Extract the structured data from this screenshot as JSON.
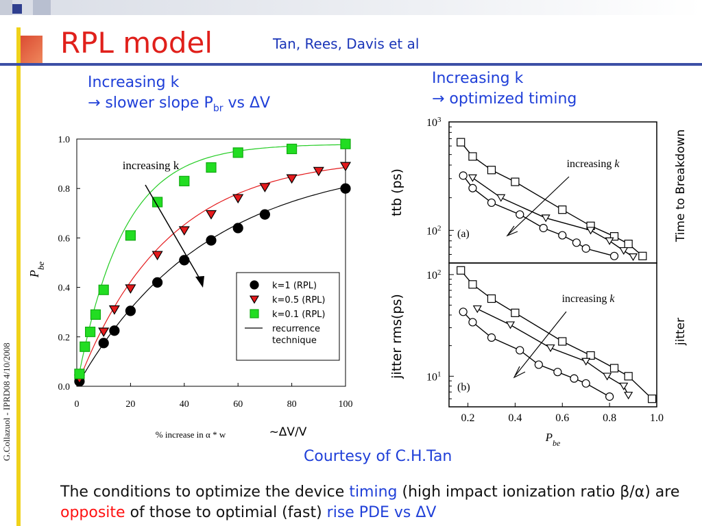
{
  "slide": {
    "title": "RPL model",
    "authors": "Tan, Rees, Davis et al",
    "left_caption_line1": "Increasing k",
    "left_caption_line2_prefix": "→ slower slope P",
    "left_caption_line2_sub": "br",
    "left_caption_line2_suffix": " vs ΔV",
    "right_caption_line1": "Increasing k",
    "right_caption_line2": "→ optimized timing",
    "courtesy": "Courtesy of C.H.Tan",
    "sidebar": "G.Collazuol - IPRD08  4/10/2008",
    "footer_parts": [
      {
        "text": "The conditions to optimize the device ",
        "color": "#111111"
      },
      {
        "text": "timing",
        "color": "#1f3fd8"
      },
      {
        "text": " (high impact ionization ratio β/α) are ",
        "color": "#111111"
      },
      {
        "text": "opposite",
        "color": "#ff1111"
      },
      {
        "text": " of those to optimial (fast) ",
        "color": "#111111"
      },
      {
        "text": "rise PDE vs ΔV",
        "color": "#1f3fd8"
      }
    ],
    "right_labels": {
      "top": "Time to Breakdown",
      "bottom": "jitter"
    },
    "deltav_note": "~ΔV/V"
  },
  "chart_data": [
    {
      "type": "scatter",
      "xlabel": "% increase in α * w",
      "ylabel": "P_be",
      "xlim": [
        0,
        100
      ],
      "ylim": [
        0,
        1.0
      ],
      "xticks": [
        0,
        20,
        40,
        60,
        80,
        100
      ],
      "yticks": [
        0.0,
        0.2,
        0.4,
        0.6,
        0.8,
        1.0
      ],
      "annotation": "increasing k",
      "legend_position": "lower-right",
      "series": [
        {
          "name": "k=1 (RPL)",
          "marker": "circle",
          "color": "#000000",
          "x": [
            1,
            10,
            14,
            20,
            30,
            40,
            50,
            60,
            70,
            100
          ],
          "y": [
            0.02,
            0.175,
            0.225,
            0.305,
            0.42,
            0.51,
            0.59,
            0.64,
            0.695,
            0.8
          ]
        },
        {
          "name": "k=0.5 (RPL)",
          "marker": "triangle-down",
          "color": "#e41a1c",
          "x": [
            1,
            10,
            14,
            20,
            30,
            40,
            50,
            60,
            70,
            80,
            90,
            100
          ],
          "y": [
            0.03,
            0.22,
            0.31,
            0.395,
            0.53,
            0.63,
            0.695,
            0.76,
            0.805,
            0.84,
            0.87,
            0.89
          ]
        },
        {
          "name": "k=0.1 (RPL)",
          "marker": "square",
          "color": "#22dd22",
          "x": [
            1,
            3,
            5,
            7,
            10,
            20,
            30,
            40,
            50,
            60,
            80,
            100
          ],
          "y": [
            0.05,
            0.16,
            0.22,
            0.29,
            0.39,
            0.61,
            0.745,
            0.83,
            0.885,
            0.945,
            0.96,
            0.98
          ]
        },
        {
          "name": "recurrence technique",
          "marker": "line",
          "color": "#000000"
        }
      ]
    },
    {
      "type": "line",
      "panel": "(a)",
      "xlabel": "P_be",
      "ylabel": "ttb (ps)",
      "yscale": "log",
      "xlim": [
        0.12,
        1.0
      ],
      "ylim": [
        50,
        1000
      ],
      "ytick_labels": [
        "10^3",
        "10^2"
      ],
      "annotation": "increasing k",
      "series": [
        {
          "marker": "square",
          "x": [
            0.17,
            0.22,
            0.3,
            0.4,
            0.6,
            0.72,
            0.82,
            0.88,
            0.94
          ],
          "y": [
            650,
            480,
            360,
            280,
            155,
            110,
            88,
            75,
            58
          ]
        },
        {
          "marker": "triangle-down",
          "x": [
            0.22,
            0.34,
            0.53,
            0.72,
            0.8,
            0.86,
            0.9
          ],
          "y": [
            305,
            200,
            130,
            100,
            80,
            65,
            57
          ]
        },
        {
          "marker": "circle",
          "x": [
            0.18,
            0.22,
            0.3,
            0.42,
            0.52,
            0.6,
            0.66,
            0.7,
            0.82
          ],
          "y": [
            320,
            245,
            180,
            140,
            105,
            90,
            77,
            68,
            58
          ]
        }
      ]
    },
    {
      "type": "line",
      "panel": "(b)",
      "xlabel": "P_be",
      "ylabel": "jitter rms(ps)",
      "yscale": "log",
      "xlim": [
        0.12,
        1.0
      ],
      "ylim": [
        5,
        130
      ],
      "xticks": [
        0.2,
        0.4,
        0.6,
        0.8,
        1.0
      ],
      "ytick_labels": [
        "10^2",
        "10^1"
      ],
      "annotation": "increasing k",
      "series": [
        {
          "marker": "square",
          "x": [
            0.17,
            0.22,
            0.3,
            0.4,
            0.6,
            0.72,
            0.82,
            0.88,
            0.98
          ],
          "y": [
            110,
            80,
            58,
            42,
            22,
            16,
            12,
            10,
            6
          ]
        },
        {
          "marker": "triangle-down",
          "x": [
            0.24,
            0.38,
            0.55,
            0.7,
            0.79,
            0.86,
            0.88
          ],
          "y": [
            46,
            32,
            19,
            14,
            10,
            8,
            6.5
          ]
        },
        {
          "marker": "circle",
          "x": [
            0.18,
            0.22,
            0.3,
            0.42,
            0.5,
            0.58,
            0.65,
            0.7,
            0.8
          ],
          "y": [
            43,
            34,
            24,
            18,
            13,
            11,
            9.5,
            8.5,
            6.3
          ]
        }
      ]
    }
  ]
}
